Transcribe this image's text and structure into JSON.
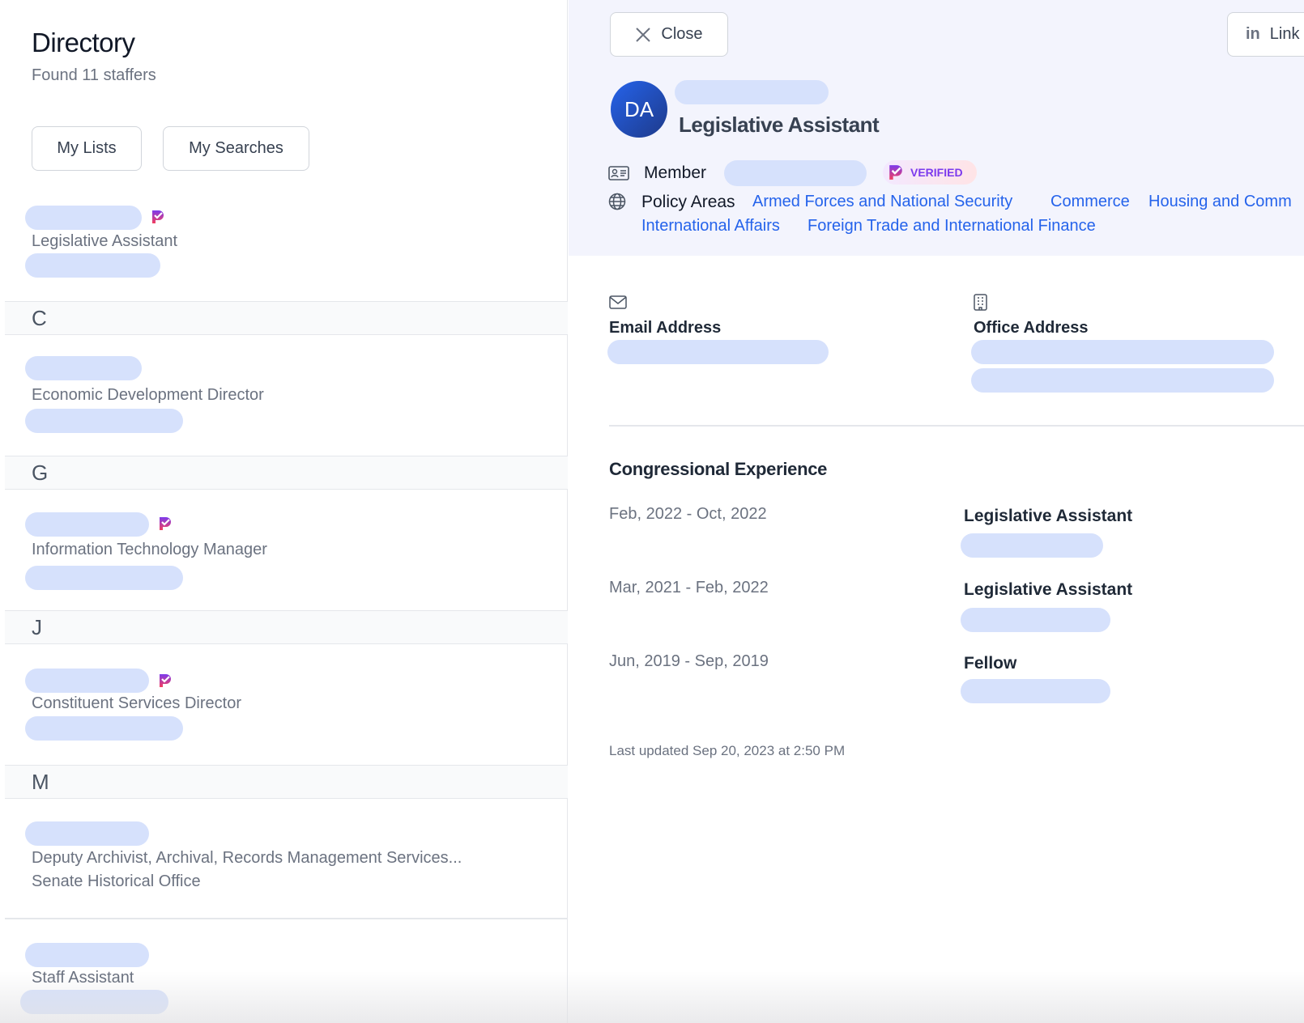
{
  "directory": {
    "title": "Directory",
    "count_text": "Found 11 staffers",
    "my_lists": "My Lists",
    "my_searches": "My Searches"
  },
  "list": {
    "item0": {
      "title": "Legislative Assistant"
    },
    "sectionC": "C",
    "itemC": {
      "title": "Economic Development Director"
    },
    "sectionG": "G",
    "itemG": {
      "title": "Information Technology Manager"
    },
    "sectionJ": "J",
    "itemJ": {
      "title": "Constituent Services Director"
    },
    "sectionM": "M",
    "itemM": {
      "title": "Deputy Archivist, Archival, Records Management Services...",
      "subtitle": "Senate Historical Office"
    },
    "itemS": {
      "title": "Staff Assistant"
    }
  },
  "detail": {
    "close": "Close",
    "linkedin": "Link",
    "avatar_initials": "DA",
    "title": "Legislative Assistant",
    "member_label": "Member",
    "verified": "VERIFIED",
    "policy_label": "Policy Areas",
    "policy_areas": [
      "Armed Forces and National Security",
      "Commerce",
      "Housing and Comm",
      "International Affairs",
      "Foreign Trade and International Finance"
    ],
    "email_label": "Email Address",
    "office_label": "Office Address",
    "experience_title": "Congressional Experience",
    "experience": [
      {
        "dates": "Feb, 2022 - Oct, 2022",
        "role": "Legislative Assistant"
      },
      {
        "dates": "Mar, 2021 - Feb, 2022",
        "role": "Legislative Assistant"
      },
      {
        "dates": "Jun, 2019 - Sep, 2019",
        "role": "Fellow"
      }
    ],
    "last_updated": "Last updated Sep 20, 2023 at 2:50 PM"
  },
  "colors": {
    "accent": "#2563eb",
    "placeholder": "#d6e1fc",
    "panel": "#f3f4fd"
  }
}
